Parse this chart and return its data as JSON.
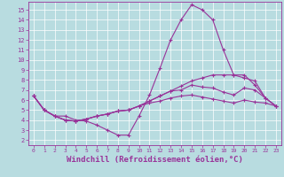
{
  "background_color": "#b8dce0",
  "grid_color": "#ffffff",
  "line_color": "#993399",
  "xlabel": "Windchill (Refroidissement éolien,°C)",
  "xlabel_fontsize": 6.5,
  "xticks": [
    0,
    1,
    2,
    3,
    4,
    5,
    6,
    7,
    8,
    9,
    10,
    11,
    12,
    13,
    14,
    15,
    16,
    17,
    18,
    19,
    20,
    21,
    22,
    23
  ],
  "yticks": [
    2,
    3,
    4,
    5,
    6,
    7,
    8,
    9,
    10,
    11,
    12,
    13,
    14,
    15
  ],
  "xlim": [
    -0.5,
    23.5
  ],
  "ylim": [
    1.5,
    15.8
  ],
  "line1_x": [
    0,
    1,
    2,
    3,
    4,
    5,
    6,
    7,
    8,
    9,
    10,
    11,
    12,
    13,
    14,
    15,
    16,
    17,
    18,
    19,
    20,
    21,
    22,
    23
  ],
  "line1_y": [
    6.4,
    5.0,
    4.4,
    4.4,
    4.0,
    3.9,
    3.5,
    3.0,
    2.5,
    2.5,
    4.4,
    6.5,
    9.2,
    12.0,
    14.0,
    15.5,
    15.0,
    14.0,
    11.0,
    8.5,
    8.5,
    7.5,
    6.2,
    5.4
  ],
  "line2_x": [
    0,
    1,
    2,
    3,
    4,
    5,
    6,
    7,
    8,
    9,
    10,
    11,
    12,
    13,
    14,
    15,
    16,
    17,
    18,
    19,
    20,
    21,
    22,
    23
  ],
  "line2_y": [
    6.4,
    5.0,
    4.4,
    4.0,
    3.9,
    4.1,
    4.4,
    4.6,
    4.9,
    5.0,
    5.4,
    5.9,
    6.4,
    6.9,
    7.4,
    7.9,
    8.2,
    8.5,
    8.5,
    8.5,
    8.2,
    7.9,
    6.2,
    5.4
  ],
  "line3_x": [
    0,
    1,
    2,
    3,
    4,
    5,
    6,
    7,
    8,
    9,
    10,
    11,
    12,
    13,
    14,
    15,
    16,
    17,
    18,
    19,
    20,
    21,
    22,
    23
  ],
  "line3_y": [
    6.4,
    5.0,
    4.4,
    4.0,
    3.9,
    4.1,
    4.4,
    4.6,
    4.9,
    5.0,
    5.4,
    5.9,
    6.4,
    6.9,
    7.0,
    7.5,
    7.3,
    7.2,
    6.8,
    6.5,
    7.2,
    7.0,
    6.2,
    5.4
  ],
  "line4_x": [
    0,
    1,
    2,
    3,
    4,
    5,
    6,
    7,
    8,
    9,
    10,
    11,
    12,
    13,
    14,
    15,
    16,
    17,
    18,
    19,
    20,
    21,
    22,
    23
  ],
  "line4_y": [
    6.4,
    5.0,
    4.4,
    4.0,
    3.9,
    4.1,
    4.4,
    4.6,
    4.9,
    5.0,
    5.4,
    5.7,
    5.9,
    6.2,
    6.4,
    6.5,
    6.3,
    6.1,
    5.9,
    5.7,
    6.0,
    5.8,
    5.7,
    5.4
  ]
}
